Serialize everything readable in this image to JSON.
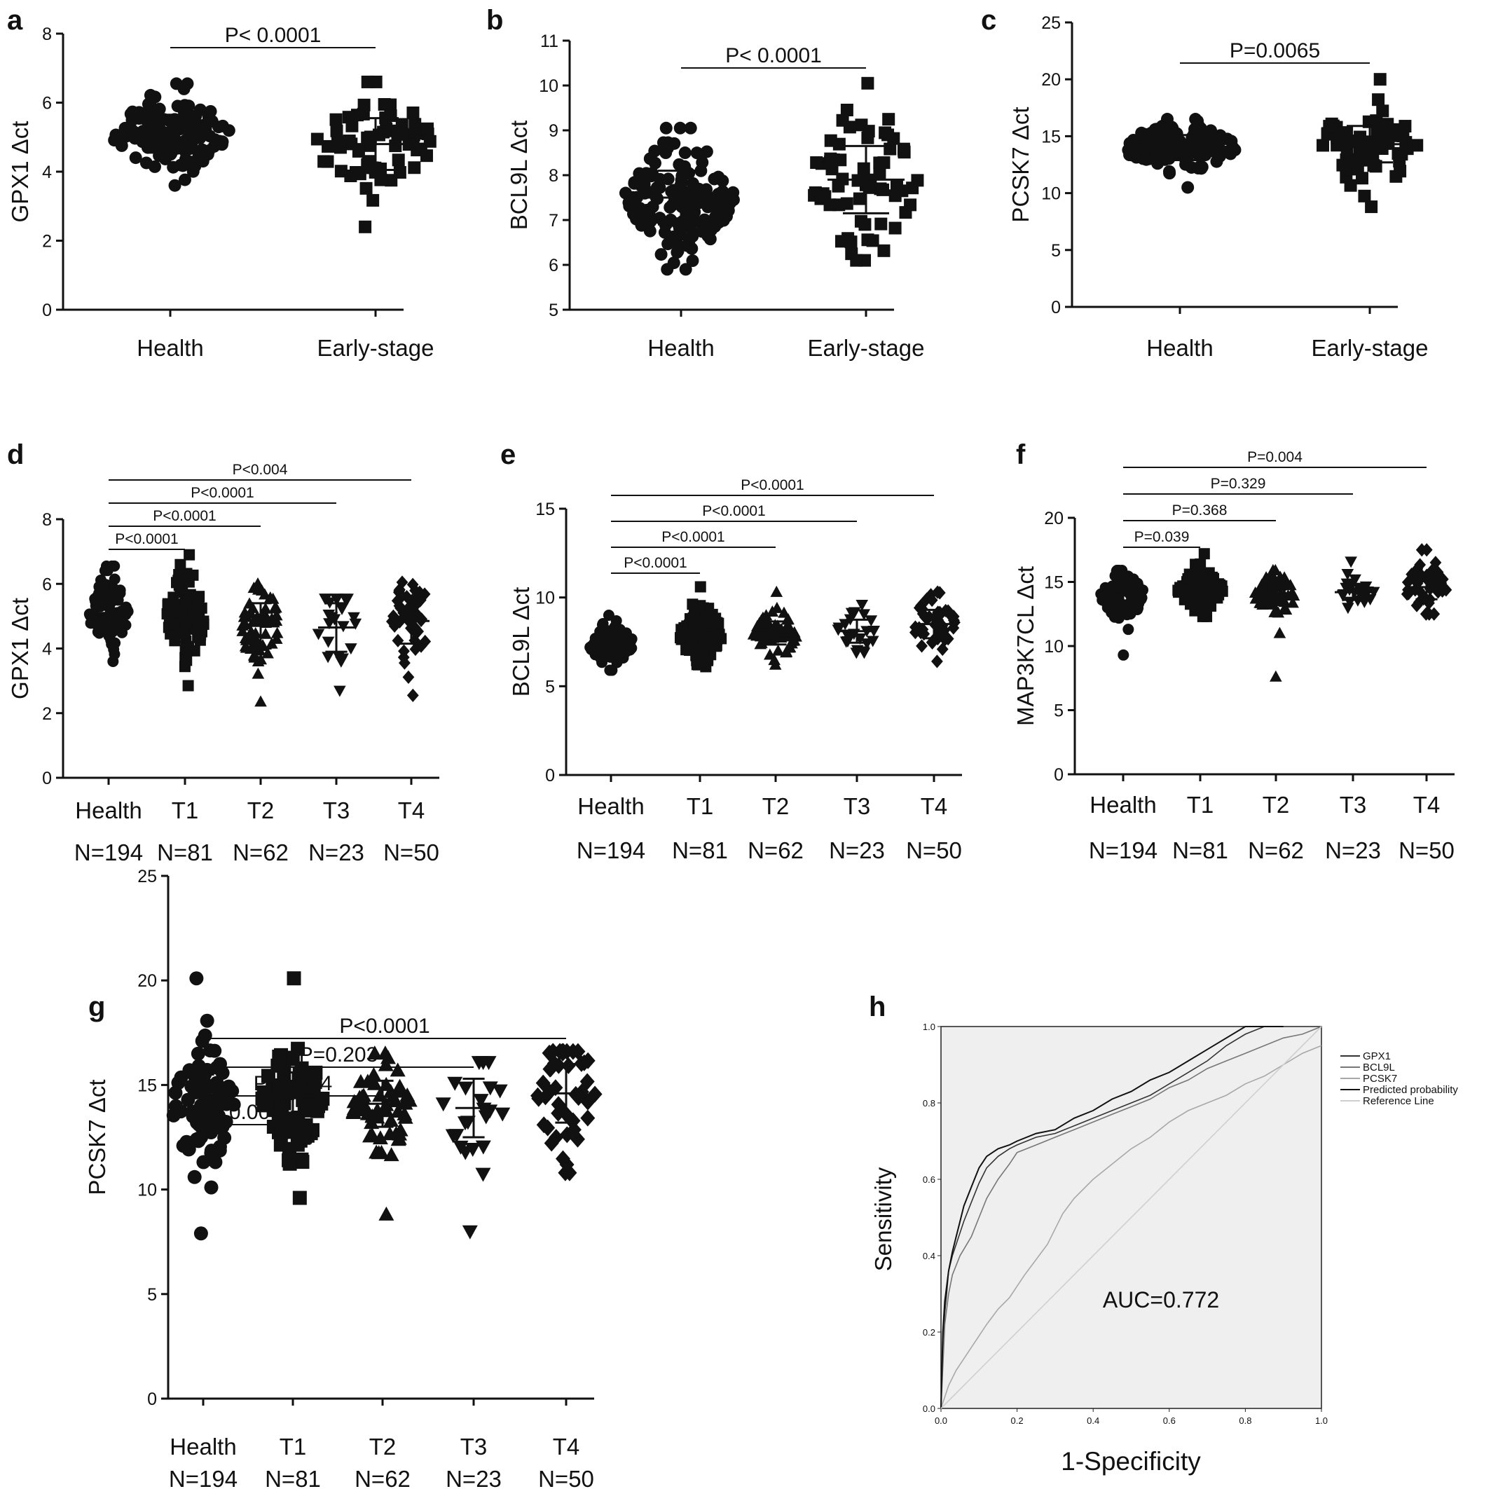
{
  "colors": {
    "marker": "#111111",
    "roc_panel_bg": "#efefef",
    "roc_gpx1": "#333333",
    "roc_bcl9l": "#777777",
    "roc_pcsk7": "#a8a8a8",
    "roc_predicted": "#111111",
    "roc_reference": "#cfcfcf"
  },
  "chart_data": [
    {
      "panel": "a",
      "type": "scatter",
      "ylabel": "GPX1 Δct",
      "ylim": [
        0,
        8
      ],
      "yticks": [
        0,
        2,
        4,
        6,
        8
      ],
      "groups": [
        {
          "category": "Health",
          "n_label": "",
          "marker": "circle",
          "mean": 5.1,
          "sd": 0.55,
          "min": 3.6,
          "max": 6.55,
          "n_points": 194
        },
        {
          "category": "Early-stage",
          "n_label": "",
          "marker": "square",
          "mean": 4.8,
          "sd": 0.75,
          "min": 2.4,
          "max": 6.6,
          "n_points": 65
        }
      ],
      "comparisons": [
        {
          "from": 0,
          "to": 1,
          "label": "P< 0.0001"
        }
      ]
    },
    {
      "panel": "b",
      "type": "scatter",
      "ylabel": "BCL9L Δct",
      "ylim": [
        5,
        11
      ],
      "yticks": [
        5,
        6,
        7,
        8,
        9,
        10,
        11
      ],
      "groups": [
        {
          "category": "Health",
          "n_label": "",
          "marker": "circle",
          "mean": 7.5,
          "sd": 0.6,
          "min": 5.9,
          "max": 9.05,
          "n_points": 194
        },
        {
          "category": "Early-stage",
          "n_label": "",
          "marker": "square",
          "mean": 7.9,
          "sd": 0.75,
          "min": 6.1,
          "max": 10.05,
          "n_points": 65
        }
      ],
      "comparisons": [
        {
          "from": 0,
          "to": 1,
          "label": "P< 0.0001"
        }
      ]
    },
    {
      "panel": "c",
      "type": "scatter",
      "ylabel": "PCSK7 Δct",
      "ylim": [
        0,
        25
      ],
      "yticks": [
        0,
        5,
        10,
        15,
        20,
        25
      ],
      "groups": [
        {
          "category": "Health",
          "n_label": "",
          "marker": "circle",
          "mean": 14.0,
          "sd": 1.1,
          "min": 10.5,
          "max": 16.5,
          "n_points": 194
        },
        {
          "category": "Early-stage",
          "n_label": "",
          "marker": "square",
          "mean": 14.3,
          "sd": 1.6,
          "min": 8.8,
          "max": 20.0,
          "n_points": 65
        }
      ],
      "comparisons": [
        {
          "from": 0,
          "to": 1,
          "label": "P=0.0065"
        }
      ]
    },
    {
      "panel": "d",
      "type": "scatter",
      "ylabel": "GPX1 Δct",
      "ylim": [
        0,
        8
      ],
      "yticks": [
        0,
        2,
        4,
        6,
        8
      ],
      "groups": [
        {
          "category": "Health",
          "n_label": "N=194",
          "marker": "circle",
          "mean": 5.1,
          "sd": 0.55,
          "min": 3.6,
          "max": 6.55,
          "n_points": 194
        },
        {
          "category": "T1",
          "n_label": "N=81",
          "marker": "square",
          "mean": 4.9,
          "sd": 0.7,
          "min": 2.85,
          "max": 6.9,
          "n_points": 81
        },
        {
          "category": "T2",
          "n_label": "N=62",
          "marker": "triangle-up",
          "mean": 4.7,
          "sd": 0.7,
          "min": 2.35,
          "max": 6.0,
          "n_points": 62
        },
        {
          "category": "T3",
          "n_label": "N=23",
          "marker": "triangle-down",
          "mean": 4.65,
          "sd": 0.75,
          "min": 2.7,
          "max": 5.55,
          "n_points": 23
        },
        {
          "category": "T4",
          "n_label": "N=50",
          "marker": "diamond",
          "mean": 4.85,
          "sd": 0.7,
          "min": 2.55,
          "max": 6.05,
          "n_points": 50
        }
      ],
      "comparisons": [
        {
          "from": 0,
          "to": 1,
          "label": "P<0.0001"
        },
        {
          "from": 0,
          "to": 2,
          "label": "P<0.0001"
        },
        {
          "from": 0,
          "to": 3,
          "label": "P<0.0001"
        },
        {
          "from": 0,
          "to": 4,
          "label": "P<0.004"
        }
      ]
    },
    {
      "panel": "e",
      "type": "scatter",
      "ylabel": "BCL9L Δct",
      "ylim": [
        0,
        15
      ],
      "yticks": [
        0,
        5,
        10,
        15
      ],
      "groups": [
        {
          "category": "Health",
          "n_label": "N=194",
          "marker": "circle",
          "mean": 7.4,
          "sd": 0.55,
          "min": 5.9,
          "max": 9.0,
          "n_points": 194
        },
        {
          "category": "T1",
          "n_label": "N=81",
          "marker": "square",
          "mean": 8.0,
          "sd": 0.8,
          "min": 6.1,
          "max": 10.6,
          "n_points": 81
        },
        {
          "category": "T2",
          "n_label": "N=62",
          "marker": "triangle-up",
          "mean": 8.0,
          "sd": 0.65,
          "min": 6.2,
          "max": 10.3,
          "n_points": 62
        },
        {
          "category": "T3",
          "n_label": "N=23",
          "marker": "triangle-down",
          "mean": 8.1,
          "sd": 0.65,
          "min": 6.9,
          "max": 9.6,
          "n_points": 23
        },
        {
          "category": "T4",
          "n_label": "N=50",
          "marker": "diamond",
          "mean": 8.5,
          "sd": 0.8,
          "min": 6.4,
          "max": 10.3,
          "n_points": 50
        }
      ],
      "comparisons": [
        {
          "from": 0,
          "to": 1,
          "label": "P<0.0001"
        },
        {
          "from": 0,
          "to": 2,
          "label": "P<0.0001"
        },
        {
          "from": 0,
          "to": 3,
          "label": "P<0.0001"
        },
        {
          "from": 0,
          "to": 4,
          "label": "P<0.0001"
        }
      ]
    },
    {
      "panel": "f",
      "type": "scatter",
      "ylabel": "MAP3K7CL Δct",
      "ylim": [
        0,
        20
      ],
      "yticks": [
        0,
        5,
        10,
        15,
        20
      ],
      "groups": [
        {
          "category": "Health",
          "n_label": "N=194",
          "marker": "circle",
          "mean": 14.0,
          "sd": 0.9,
          "min": 9.3,
          "max": 15.9,
          "n_points": 194
        },
        {
          "category": "T1",
          "n_label": "N=81",
          "marker": "square",
          "mean": 14.4,
          "sd": 0.8,
          "min": 12.3,
          "max": 17.2,
          "n_points": 81
        },
        {
          "category": "T2",
          "n_label": "N=62",
          "marker": "triangle-up",
          "mean": 14.0,
          "sd": 0.8,
          "min": 7.6,
          "max": 15.9,
          "n_points": 62
        },
        {
          "category": "T3",
          "n_label": "N=23",
          "marker": "triangle-down",
          "mean": 14.2,
          "sd": 0.6,
          "min": 13.0,
          "max": 16.6,
          "n_points": 23
        },
        {
          "category": "T4",
          "n_label": "N=50",
          "marker": "diamond",
          "mean": 14.6,
          "sd": 0.95,
          "min": 12.5,
          "max": 17.5,
          "n_points": 50
        }
      ],
      "comparisons": [
        {
          "from": 0,
          "to": 1,
          "label": "P=0.039"
        },
        {
          "from": 0,
          "to": 2,
          "label": "P=0.368"
        },
        {
          "from": 0,
          "to": 3,
          "label": "P=0.329"
        },
        {
          "from": 0,
          "to": 4,
          "label": "P=0.004"
        }
      ]
    },
    {
      "panel": "g",
      "type": "scatter",
      "ylabel": "PCSK7 Δct",
      "ylim": [
        0,
        25
      ],
      "yticks": [
        0,
        5,
        10,
        15,
        20,
        25
      ],
      "groups": [
        {
          "category": "Health",
          "n_label": "N=194",
          "marker": "circle",
          "mean": 14.0,
          "sd": 1.5,
          "min": 7.9,
          "max": 20.1,
          "n_points": 194
        },
        {
          "category": "T1",
          "n_label": "N=81",
          "marker": "square",
          "mean": 14.4,
          "sd": 1.2,
          "min": 9.6,
          "max": 20.1,
          "n_points": 81
        },
        {
          "category": "T2",
          "n_label": "N=62",
          "marker": "triangle-up",
          "mean": 14.1,
          "sd": 1.1,
          "min": 8.8,
          "max": 16.5,
          "n_points": 62
        },
        {
          "category": "T3",
          "n_label": "N=23",
          "marker": "triangle-down",
          "mean": 13.9,
          "sd": 1.4,
          "min": 8.0,
          "max": 16.1,
          "n_points": 23
        },
        {
          "category": "T4",
          "n_label": "N=50",
          "marker": "diamond",
          "mean": 14.6,
          "sd": 1.4,
          "min": 10.8,
          "max": 16.6,
          "n_points": 50
        }
      ],
      "comparisons": [
        {
          "from": 0,
          "to": 1,
          "label": "P<0.0001"
        },
        {
          "from": 0,
          "to": 2,
          "label": "P<0.034"
        },
        {
          "from": 0,
          "to": 3,
          "label": "P=0.203"
        },
        {
          "from": 0,
          "to": 4,
          "label": "P<0.0001"
        }
      ]
    },
    {
      "panel": "h",
      "type": "line",
      "xlabel": "1-Specificity",
      "ylabel": "Sensitivity",
      "xlim": [
        0,
        1
      ],
      "ylim": [
        0,
        1
      ],
      "xticks": [
        "0.0",
        "0.2",
        "0.4",
        "0.6",
        "0.8",
        "1.0"
      ],
      "yticks": [
        "0.0",
        "0.2",
        "0.4",
        "0.6",
        "0.8",
        "1.0"
      ],
      "annotation": "AUC=0.772",
      "legend_position": "right",
      "series": [
        {
          "name": "GPX1",
          "color_key": "roc_gpx1",
          "x": [
            0,
            0.005,
            0.01,
            0.015,
            0.02,
            0.03,
            0.04,
            0.05,
            0.06,
            0.08,
            0.1,
            0.12,
            0.15,
            0.18,
            0.2,
            0.25,
            0.3,
            0.35,
            0.4,
            0.45,
            0.5,
            0.55,
            0.6,
            0.65,
            0.7,
            0.75,
            0.8,
            0.85,
            0.9
          ],
          "y": [
            0,
            0.17,
            0.25,
            0.3,
            0.36,
            0.4,
            0.43,
            0.46,
            0.49,
            0.54,
            0.59,
            0.63,
            0.66,
            0.68,
            0.69,
            0.71,
            0.72,
            0.74,
            0.76,
            0.78,
            0.8,
            0.82,
            0.85,
            0.88,
            0.91,
            0.95,
            0.98,
            1.0,
            1.0
          ]
        },
        {
          "name": "BCL9L",
          "color_key": "roc_bcl9l",
          "x": [
            0,
            0.01,
            0.02,
            0.03,
            0.05,
            0.08,
            0.1,
            0.12,
            0.15,
            0.18,
            0.2,
            0.25,
            0.3,
            0.35,
            0.4,
            0.45,
            0.5,
            0.55,
            0.6,
            0.65,
            0.7,
            0.75,
            0.8,
            0.85,
            0.9,
            0.95,
            1.0
          ],
          "y": [
            0,
            0.22,
            0.3,
            0.35,
            0.4,
            0.45,
            0.5,
            0.55,
            0.6,
            0.64,
            0.67,
            0.69,
            0.71,
            0.73,
            0.75,
            0.77,
            0.79,
            0.81,
            0.84,
            0.86,
            0.89,
            0.91,
            0.93,
            0.95,
            0.97,
            0.98,
            1.0
          ]
        },
        {
          "name": "PCSK7",
          "color_key": "roc_pcsk7",
          "x": [
            0,
            0.02,
            0.04,
            0.06,
            0.08,
            0.1,
            0.12,
            0.15,
            0.18,
            0.2,
            0.22,
            0.25,
            0.28,
            0.3,
            0.32,
            0.35,
            0.4,
            0.45,
            0.5,
            0.55,
            0.6,
            0.65,
            0.7,
            0.75,
            0.8,
            0.85,
            0.9,
            0.95,
            1.0
          ],
          "y": [
            0,
            0.06,
            0.1,
            0.13,
            0.16,
            0.19,
            0.22,
            0.26,
            0.29,
            0.32,
            0.35,
            0.39,
            0.43,
            0.47,
            0.51,
            0.55,
            0.6,
            0.64,
            0.68,
            0.71,
            0.75,
            0.78,
            0.8,
            0.82,
            0.85,
            0.87,
            0.9,
            0.93,
            0.95
          ]
        },
        {
          "name": "Predicted probability",
          "color_key": "roc_predicted",
          "x": [
            0,
            0.005,
            0.01,
            0.02,
            0.03,
            0.04,
            0.05,
            0.06,
            0.08,
            0.1,
            0.12,
            0.15,
            0.18,
            0.2,
            0.25,
            0.3,
            0.35,
            0.4,
            0.45,
            0.5,
            0.55,
            0.6,
            0.65,
            0.7,
            0.75,
            0.8,
            0.85,
            0.9
          ],
          "y": [
            0,
            0.2,
            0.28,
            0.36,
            0.41,
            0.45,
            0.49,
            0.53,
            0.58,
            0.63,
            0.66,
            0.68,
            0.69,
            0.7,
            0.72,
            0.73,
            0.76,
            0.78,
            0.81,
            0.83,
            0.86,
            0.88,
            0.91,
            0.94,
            0.97,
            1.0,
            1.0,
            1.0
          ]
        },
        {
          "name": "Reference Line",
          "color_key": "roc_reference",
          "x": [
            0,
            1
          ],
          "y": [
            0,
            1
          ]
        }
      ]
    }
  ]
}
